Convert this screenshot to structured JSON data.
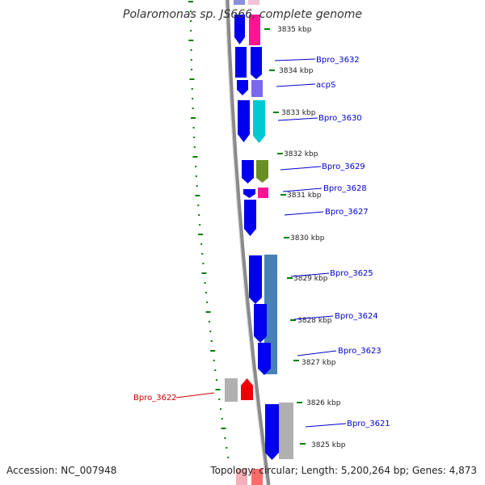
{
  "title": "Polaromonas sp. JS666, complete genome",
  "accession": "Accession: NC_007948",
  "topology": "Topology: circular; Length: 5,200,264 bp; Genes: 4,873",
  "colors": {
    "backbone": "#888888",
    "forward_gene": "#0000ee",
    "label_blue": "#0000cc",
    "label_red": "#cc0000",
    "tick_green": "#008000"
  },
  "ticks": [
    "3835 kbp",
    "3834 kbp",
    "3833 kbp",
    "3832 kbp",
    "3831 kbp",
    "3830 kbp",
    "3829 kbp",
    "3828 kbp",
    "3827 kbp",
    "3826 kbp",
    "3825 kbp"
  ],
  "gene_labels": [
    "Bpro_3632",
    "acpS",
    "Bpro_3630",
    "Bpro_3629",
    "Bpro_3628",
    "Bpro_3627",
    "Bpro_3625",
    "Bpro_3624",
    "Bpro_3623",
    "Bpro_3621"
  ],
  "left_label": "Bpro_3622"
}
